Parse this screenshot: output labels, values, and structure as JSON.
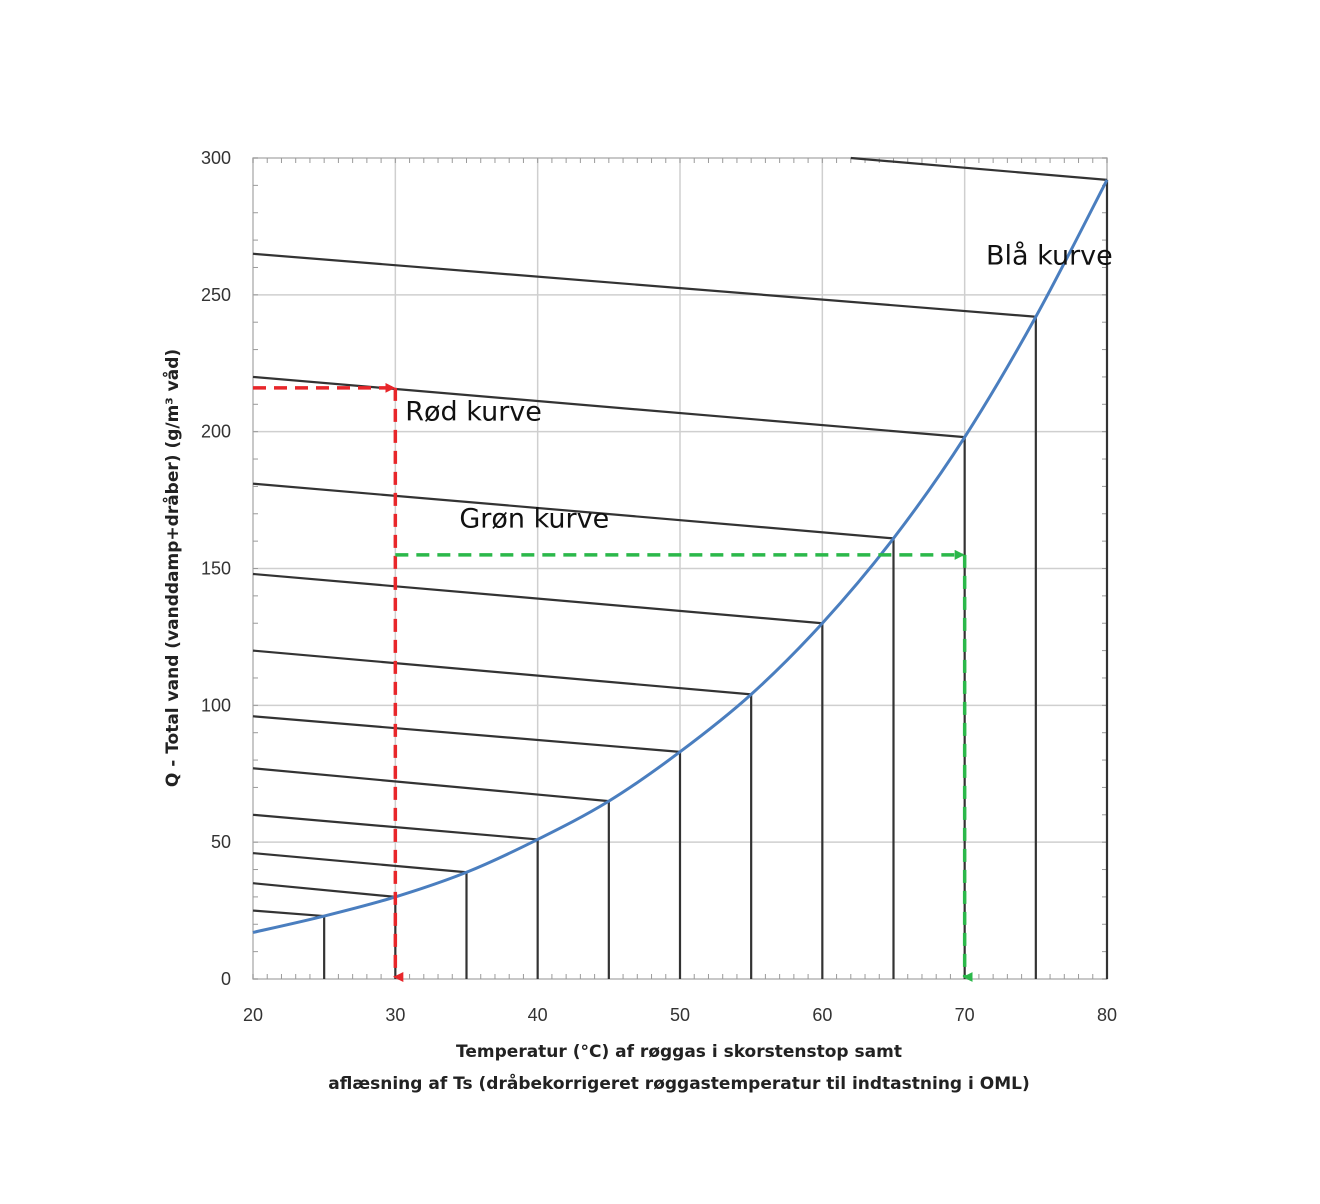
{
  "chart_data": {
    "type": "line",
    "xlabel_lines": [
      "Temperatur (°C) af røggas i skorstenstop samt",
      "aflæsning af Ts (dråbekorrigeret røggastemperatur til indtastning i OML)"
    ],
    "ylabel": "Q - Total vand  (vanddamp+dråber) (g/m³ våd)",
    "xlim": [
      20,
      80
    ],
    "ylim": [
      0,
      300
    ],
    "x_ticks": [
      20,
      30,
      40,
      50,
      60,
      70,
      80
    ],
    "y_ticks": [
      0,
      50,
      100,
      150,
      200,
      250,
      300
    ],
    "grid": true,
    "saturation_curve": {
      "color": "#4a7ebf",
      "x": [
        20,
        25,
        30,
        35,
        40,
        45,
        50,
        55,
        60,
        65,
        70,
        75,
        80
      ],
      "y": [
        17,
        23,
        30,
        39,
        51,
        65,
        83,
        104,
        130,
        161,
        198,
        242,
        292
      ]
    },
    "isolines": [
      {
        "x_start": 20,
        "y_start": 25,
        "x_end": 25,
        "y_end": 23
      },
      {
        "x_start": 20,
        "y_start": 35,
        "x_end": 30,
        "y_end": 30
      },
      {
        "x_start": 20,
        "y_start": 46,
        "x_end": 35,
        "y_end": 39
      },
      {
        "x_start": 20,
        "y_start": 60,
        "x_end": 40,
        "y_end": 51
      },
      {
        "x_start": 20,
        "y_start": 77,
        "x_end": 45,
        "y_end": 65
      },
      {
        "x_start": 20,
        "y_start": 96,
        "x_end": 50,
        "y_end": 83
      },
      {
        "x_start": 20,
        "y_start": 120,
        "x_end": 55,
        "y_end": 104
      },
      {
        "x_start": 20,
        "y_start": 148,
        "x_end": 60,
        "y_end": 130
      },
      {
        "x_start": 20,
        "y_start": 181,
        "x_end": 65,
        "y_end": 161
      },
      {
        "x_start": 20,
        "y_start": 220,
        "x_end": 70,
        "y_end": 198
      },
      {
        "x_start": 20,
        "y_start": 265,
        "x_end": 75,
        "y_end": 242
      },
      {
        "x_start": 62,
        "y_start": 300,
        "x_end": 80,
        "y_end": 292
      }
    ],
    "verticals": [
      {
        "x": 25,
        "y_top": 23
      },
      {
        "x": 30,
        "y_top": 30
      },
      {
        "x": 35,
        "y_top": 39
      },
      {
        "x": 40,
        "y_top": 51
      },
      {
        "x": 45,
        "y_top": 65
      },
      {
        "x": 50,
        "y_top": 83
      },
      {
        "x": 55,
        "y_top": 104
      },
      {
        "x": 60,
        "y_top": 130
      },
      {
        "x": 65,
        "y_top": 161
      },
      {
        "x": 70,
        "y_top": 198
      },
      {
        "x": 75,
        "y_top": 242
      },
      {
        "x": 80,
        "y_top": 292
      }
    ],
    "red_path": {
      "color": "#e8262a",
      "points": [
        [
          20,
          216
        ],
        [
          30,
          216
        ],
        [
          30,
          0
        ]
      ]
    },
    "green_path": {
      "color": "#2bb84a",
      "points": [
        [
          30,
          155
        ],
        [
          70,
          155
        ],
        [
          70,
          0
        ]
      ]
    },
    "annotations": [
      {
        "text": "Blå kurve",
        "x": 71.5,
        "y": 261
      },
      {
        "text": "Rød kurve",
        "x": 30.7,
        "y": 204
      },
      {
        "text": "Grøn kurve",
        "x": 34.5,
        "y": 165
      }
    ]
  }
}
